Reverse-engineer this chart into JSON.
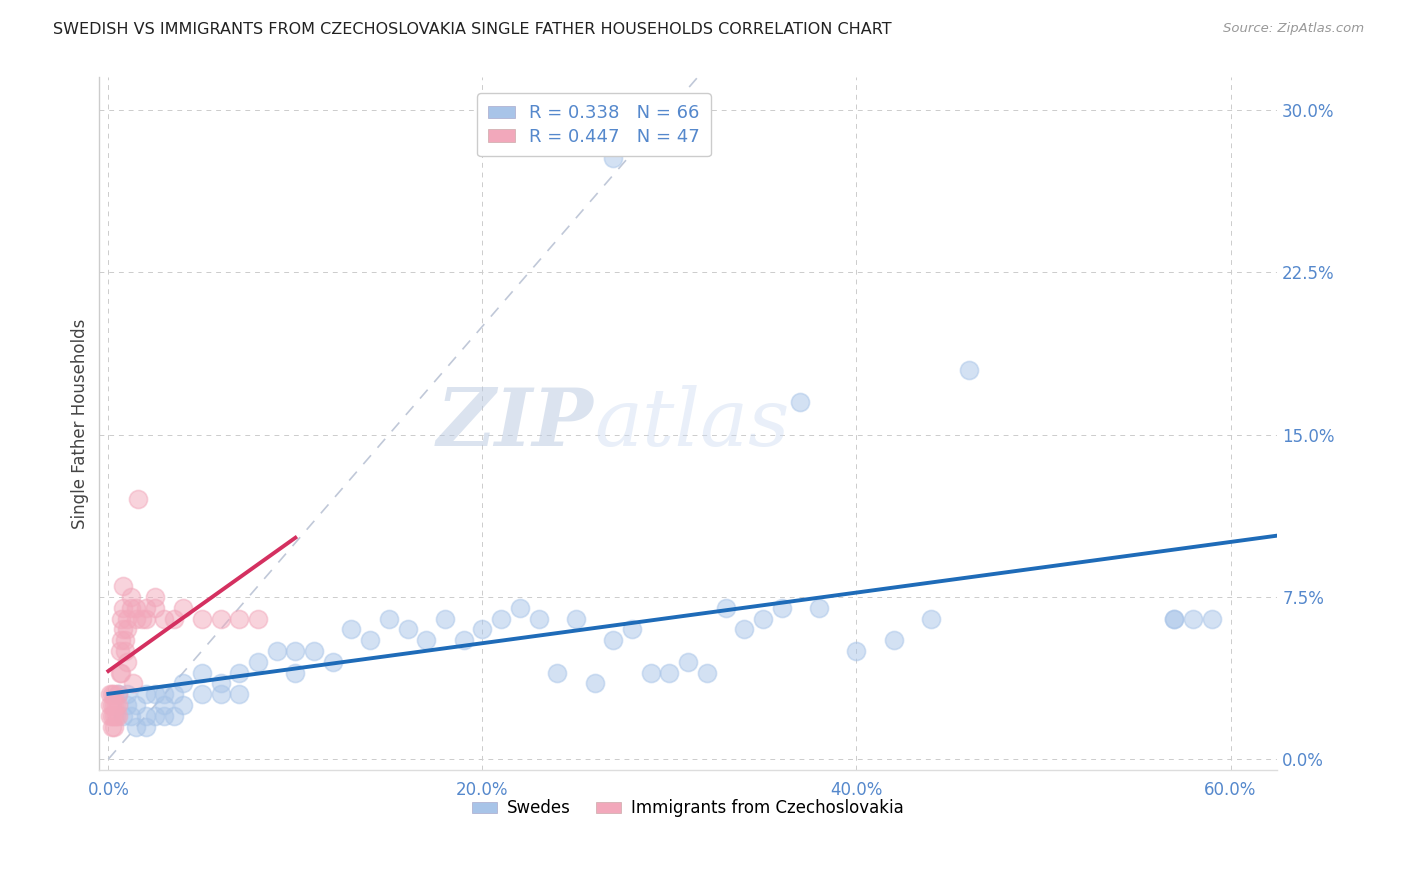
{
  "title": "SWEDISH VS IMMIGRANTS FROM CZECHOSLOVAKIA SINGLE FATHER HOUSEHOLDS CORRELATION CHART",
  "source": "Source: ZipAtlas.com",
  "ylabel": "Single Father Households",
  "xlabel_tick_vals": [
    0.0,
    0.2,
    0.4,
    0.6
  ],
  "ylabel_tick_vals": [
    0.0,
    0.075,
    0.15,
    0.225,
    0.3
  ],
  "xmin": -0.005,
  "xmax": 0.625,
  "ymin": -0.005,
  "ymax": 0.315,
  "blue_R": 0.338,
  "blue_N": 66,
  "pink_R": 0.447,
  "pink_N": 47,
  "legend_labels": [
    "Swedes",
    "Immigrants from Czechoslovakia"
  ],
  "blue_color": "#a8c4e8",
  "pink_color": "#f2a8bb",
  "blue_line_color": "#1e6bb8",
  "pink_line_color": "#d43060",
  "diag_line_color": "#c0c8d8",
  "title_color": "#222222",
  "axis_label_color": "#5588cc",
  "watermark_zip": "ZIP",
  "watermark_atlas": "atlas",
  "background_color": "#ffffff",
  "blue_scatter_x": [
    0.27,
    0.005,
    0.008,
    0.01,
    0.01,
    0.012,
    0.015,
    0.015,
    0.02,
    0.02,
    0.02,
    0.025,
    0.025,
    0.03,
    0.03,
    0.03,
    0.035,
    0.035,
    0.04,
    0.04,
    0.05,
    0.05,
    0.06,
    0.06,
    0.07,
    0.07,
    0.08,
    0.09,
    0.1,
    0.1,
    0.11,
    0.12,
    0.13,
    0.14,
    0.15,
    0.16,
    0.17,
    0.18,
    0.19,
    0.2,
    0.21,
    0.22,
    0.23,
    0.24,
    0.25,
    0.26,
    0.27,
    0.28,
    0.29,
    0.3,
    0.31,
    0.32,
    0.33,
    0.34,
    0.35,
    0.36,
    0.37,
    0.38,
    0.4,
    0.42,
    0.44,
    0.46,
    0.57,
    0.57,
    0.58,
    0.59
  ],
  "blue_scatter_y": [
    0.278,
    0.03,
    0.02,
    0.025,
    0.03,
    0.02,
    0.025,
    0.015,
    0.02,
    0.03,
    0.015,
    0.03,
    0.02,
    0.025,
    0.03,
    0.02,
    0.03,
    0.02,
    0.035,
    0.025,
    0.03,
    0.04,
    0.03,
    0.035,
    0.04,
    0.03,
    0.045,
    0.05,
    0.04,
    0.05,
    0.05,
    0.045,
    0.06,
    0.055,
    0.065,
    0.06,
    0.055,
    0.065,
    0.055,
    0.06,
    0.065,
    0.07,
    0.065,
    0.04,
    0.065,
    0.035,
    0.055,
    0.06,
    0.04,
    0.04,
    0.045,
    0.04,
    0.07,
    0.06,
    0.065,
    0.07,
    0.165,
    0.07,
    0.05,
    0.055,
    0.065,
    0.18,
    0.065,
    0.065,
    0.065,
    0.065
  ],
  "pink_scatter_x": [
    0.001,
    0.001,
    0.001,
    0.002,
    0.002,
    0.002,
    0.002,
    0.003,
    0.003,
    0.003,
    0.003,
    0.004,
    0.004,
    0.005,
    0.005,
    0.005,
    0.006,
    0.006,
    0.007,
    0.007,
    0.007,
    0.008,
    0.008,
    0.008,
    0.009,
    0.009,
    0.01,
    0.01,
    0.01,
    0.012,
    0.012,
    0.013,
    0.015,
    0.015,
    0.016,
    0.018,
    0.02,
    0.02,
    0.025,
    0.025,
    0.03,
    0.035,
    0.04,
    0.05,
    0.06,
    0.07,
    0.08
  ],
  "pink_scatter_y": [
    0.02,
    0.025,
    0.03,
    0.02,
    0.025,
    0.03,
    0.015,
    0.02,
    0.025,
    0.03,
    0.015,
    0.025,
    0.02,
    0.025,
    0.03,
    0.02,
    0.04,
    0.05,
    0.04,
    0.055,
    0.065,
    0.06,
    0.07,
    0.08,
    0.05,
    0.055,
    0.045,
    0.06,
    0.065,
    0.07,
    0.075,
    0.035,
    0.065,
    0.07,
    0.12,
    0.065,
    0.065,
    0.07,
    0.07,
    0.075,
    0.065,
    0.065,
    0.07,
    0.065,
    0.065,
    0.065,
    0.065
  ],
  "pink_line_x_start": 0.0,
  "pink_line_x_end": 0.1
}
